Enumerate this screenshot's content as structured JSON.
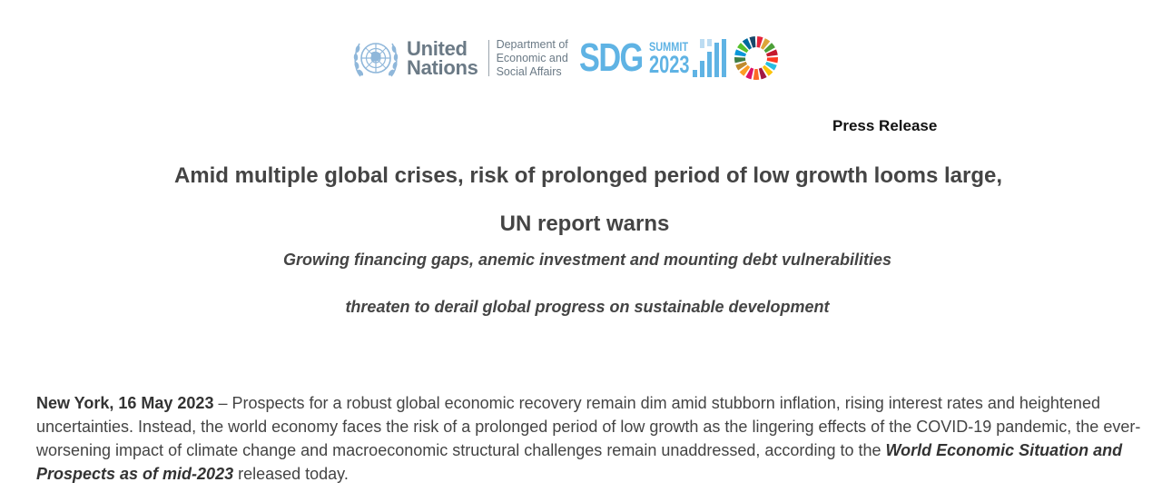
{
  "header": {
    "un_logo": {
      "line1": "United",
      "line2": "Nations",
      "emblem_icon": "un-emblem-icon",
      "color": "#6b7a86"
    },
    "desa": {
      "line1": "Department of",
      "line2": "Economic and",
      "line3": "Social Affairs"
    },
    "sdg_summit": {
      "letters": "SDG",
      "word": "SUMMIT",
      "year": "2023",
      "bars_icon": "bar-chart-icon",
      "wheel_icon": "sdg-wheel-icon",
      "color": "#5fb3e4"
    }
  },
  "label": "Press Release",
  "headline": {
    "line1": "Amid multiple global crises, risk of prolonged period of low growth looms large,",
    "line2": "UN report warns"
  },
  "subheadline": {
    "line1": "Growing financing gaps, anemic investment and mounting debt vulnerabilities",
    "line2": "threaten to derail global progress on sustainable development"
  },
  "body": {
    "dateline": "New York, 16 May 2023",
    "text_part1": " – Prospects for a robust global economic recovery remain dim amid stubborn inflation, rising interest rates and heightened uncertainties. Instead, the world economy faces the risk of a prolonged period of low growth as the lingering effects of the COVID-19 pandemic, the ever-worsening impact of climate change and macroeconomic structural challenges remain unaddressed, according to the ",
    "report_title": "World Economic Situation and Prospects as of mid-2023",
    "text_part2": " released today."
  }
}
